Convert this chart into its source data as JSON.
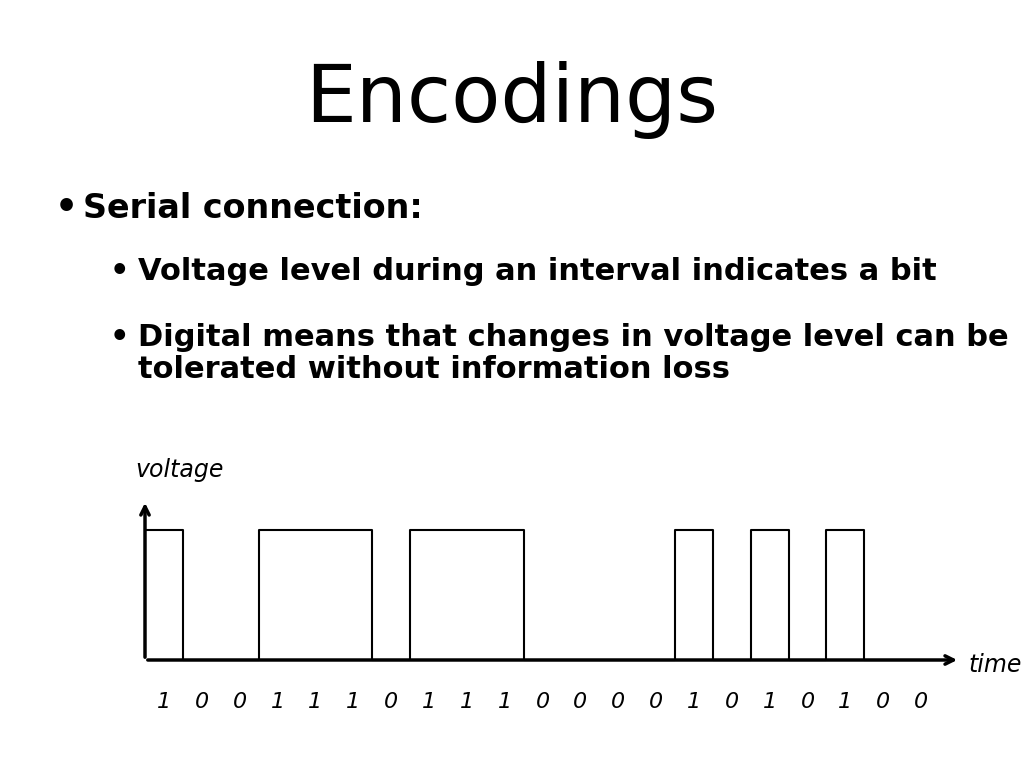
{
  "title": "Encodings",
  "title_fontsize": 58,
  "bg_color": "#ffffff",
  "bullet1": "Serial connection:",
  "bullet2": "Voltage level during an interval indicates a bit",
  "bullet3_line1": "Digital means that changes in voltage level can be",
  "bullet3_line2": "tolerated without information loss",
  "bullet_fontsize": 24,
  "sub_bullet_fontsize": 22,
  "bits": [
    1,
    0,
    0,
    1,
    1,
    1,
    0,
    1,
    1,
    1,
    0,
    0,
    0,
    0,
    1,
    0,
    1,
    0,
    1,
    0,
    0
  ],
  "waveform_color": "#000000",
  "axis_color": "#000000",
  "voltage_label": "voltage",
  "time_label": "time",
  "voltage_label_fontsize": 17,
  "time_label_fontsize": 17,
  "bit_label_fontsize": 16,
  "waveform_linewidth": 1.5,
  "axis_linewidth": 2.5,
  "high_level": 1.0,
  "low_level": 0.0
}
